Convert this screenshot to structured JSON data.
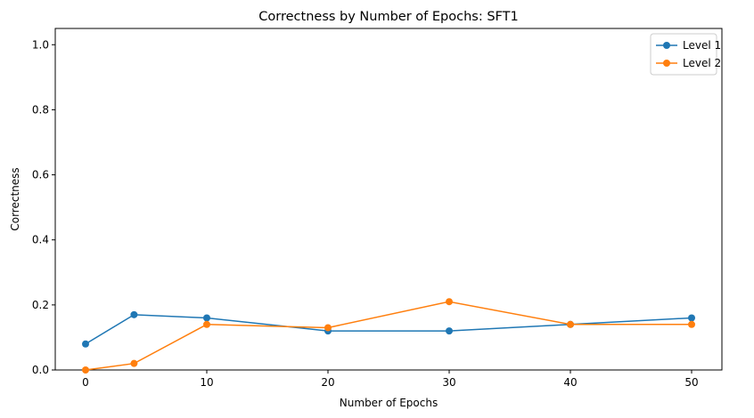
{
  "chart_data": {
    "type": "line",
    "title": "Correctness by Number of Epochs: SFT1",
    "xlabel": "Number of Epochs",
    "ylabel": "Correctness",
    "x_ticks": [
      0,
      10,
      20,
      30,
      40,
      50
    ],
    "y_ticks": [
      0.0,
      0.2,
      0.4,
      0.6,
      0.8,
      1.0
    ],
    "y_tick_labels": [
      "0.0",
      "0.2",
      "0.4",
      "0.6",
      "0.8",
      "1.0"
    ],
    "xlim": [
      -2.5,
      52.5
    ],
    "ylim": [
      0,
      1.05
    ],
    "grid": false,
    "legend_position": "top-right",
    "x": [
      0,
      4,
      10,
      20,
      30,
      40,
      50
    ],
    "series": [
      {
        "name": "Level 1",
        "color": "#1f77b4",
        "values": [
          0.08,
          0.17,
          0.16,
          0.12,
          0.12,
          0.14,
          0.16
        ]
      },
      {
        "name": "Level 2",
        "color": "#ff7f0e",
        "values": [
          0.0,
          0.02,
          0.14,
          0.13,
          0.21,
          0.14,
          0.14
        ]
      }
    ]
  }
}
